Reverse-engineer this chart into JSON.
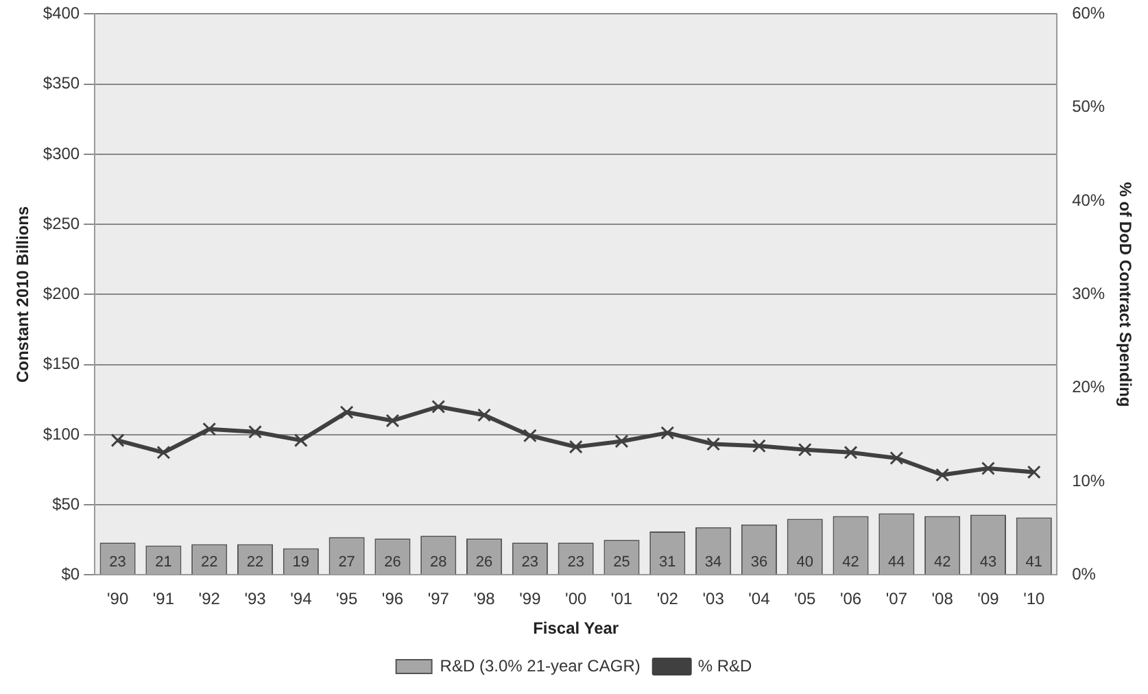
{
  "chart_data": {
    "type": "bar",
    "xlabel": "Fiscal Year",
    "ylabel": "Constant 2010 Billions",
    "y2label": "% of DoD Contract Spending",
    "categories": [
      "'90",
      "'91",
      "'92",
      "'93",
      "'94",
      "'95",
      "'96",
      "'97",
      "'98",
      "'99",
      "'00",
      "'01",
      "'02",
      "'03",
      "'04",
      "'05",
      "'06",
      "'07",
      "'08",
      "'09",
      "'10"
    ],
    "series": [
      {
        "name": "R&D (3.0% 21-year CAGR)",
        "color": "#a6a6a6",
        "values": [
          23,
          21,
          22,
          22,
          19,
          27,
          26,
          28,
          26,
          23,
          23,
          25,
          31,
          34,
          36,
          40,
          42,
          44,
          42,
          43,
          41
        ],
        "data_labels": true
      },
      {
        "name": "% R&D",
        "type": "line",
        "axis": "y2",
        "color": "#404040",
        "marker": "cross",
        "values": [
          14.4,
          13.1,
          15.6,
          15.3,
          14.4,
          17.4,
          16.5,
          18,
          17.1,
          14.9,
          13.7,
          14.3,
          15.2,
          14,
          13.8,
          13.4,
          13.1,
          12.5,
          10.7,
          11.4,
          11
        ]
      }
    ],
    "ylim": [
      0,
      400
    ],
    "yticks": [
      {
        "value": 0,
        "label": "$0"
      },
      {
        "value": 50,
        "label": "$50"
      },
      {
        "value": 100,
        "label": "$100"
      },
      {
        "value": 150,
        "label": "$150"
      },
      {
        "value": 200,
        "label": "$200"
      },
      {
        "value": 250,
        "label": "$250"
      },
      {
        "value": 300,
        "label": "$300"
      },
      {
        "value": 350,
        "label": "$350"
      },
      {
        "value": 400,
        "label": "$400"
      }
    ],
    "y2lim": [
      0,
      60
    ],
    "y2ticks": [
      {
        "value": 0,
        "label": "0%"
      },
      {
        "value": 10,
        "label": "10%"
      },
      {
        "value": 20,
        "label": "20%"
      },
      {
        "value": 30,
        "label": "30%"
      },
      {
        "value": 40,
        "label": "40%"
      },
      {
        "value": 50,
        "label": "50%"
      },
      {
        "value": 60,
        "label": "60%"
      }
    ],
    "grid": "y",
    "legend": "bottom"
  }
}
